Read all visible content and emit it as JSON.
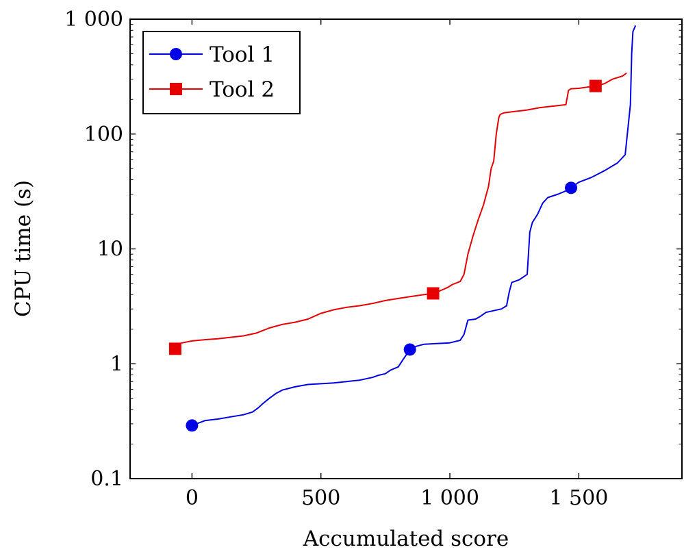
{
  "chart_data": {
    "type": "line",
    "title": "",
    "xlabel": "Accumulated score",
    "ylabel": "CPU time (s)",
    "xlim": [
      -240,
      1900
    ],
    "ylim": [
      0.1,
      1000
    ],
    "yscale": "log",
    "grid": false,
    "legend_position": "top-left",
    "x_ticks": [
      0,
      500,
      1000,
      1500
    ],
    "x_tick_labels": [
      "0",
      "500",
      "1 000",
      "1 500"
    ],
    "y_ticks": [
      0.1,
      1,
      10,
      100,
      1000
    ],
    "y_tick_labels": [
      "0.1",
      "1",
      "10",
      "100",
      "1 000"
    ],
    "series": [
      {
        "name": "Tool 1",
        "color": "#0000e6",
        "marker": "circle",
        "x": [
          0,
          50,
          100,
          150,
          200,
          235,
          255,
          275,
          300,
          325,
          350,
          400,
          450,
          500,
          550,
          600,
          650,
          700,
          720,
          750,
          770,
          800,
          820,
          845,
          870,
          900,
          950,
          1000,
          1040,
          1055,
          1070,
          1100,
          1120,
          1140,
          1170,
          1200,
          1220,
          1230,
          1240,
          1260,
          1270,
          1300,
          1310,
          1320,
          1340,
          1360,
          1380,
          1420,
          1450,
          1470,
          1500,
          1550,
          1600,
          1650,
          1680,
          1700,
          1705,
          1710,
          1720
        ],
        "y": [
          0.29,
          0.32,
          0.33,
          0.345,
          0.36,
          0.38,
          0.41,
          0.45,
          0.5,
          0.55,
          0.59,
          0.63,
          0.66,
          0.67,
          0.68,
          0.7,
          0.72,
          0.76,
          0.79,
          0.82,
          0.88,
          0.94,
          1.1,
          1.33,
          1.42,
          1.48,
          1.5,
          1.52,
          1.6,
          1.8,
          2.4,
          2.45,
          2.6,
          2.8,
          2.9,
          3.0,
          3.2,
          4.2,
          5.1,
          5.3,
          5.4,
          6.0,
          14.0,
          17.0,
          20.0,
          25.0,
          28.0,
          30.0,
          32.0,
          34.0,
          38.0,
          42.0,
          48.0,
          56.0,
          66.0,
          180.0,
          500.0,
          780.0,
          880.0
        ]
      },
      {
        "name": "Tool 2",
        "color": "#e60000",
        "marker": "square",
        "x": [
          -65,
          -50,
          0,
          50,
          100,
          150,
          200,
          250,
          300,
          350,
          400,
          450,
          500,
          550,
          600,
          650,
          700,
          750,
          800,
          850,
          900,
          935,
          960,
          990,
          1010,
          1040,
          1055,
          1070,
          1090,
          1110,
          1130,
          1150,
          1160,
          1170,
          1180,
          1190,
          1195,
          1200,
          1210,
          1250,
          1300,
          1350,
          1400,
          1450,
          1460,
          1470,
          1500,
          1565,
          1600,
          1630,
          1650,
          1670,
          1685
        ],
        "y": [
          1.35,
          1.5,
          1.58,
          1.62,
          1.65,
          1.7,
          1.75,
          1.85,
          2.05,
          2.2,
          2.3,
          2.45,
          2.75,
          2.95,
          3.1,
          3.2,
          3.35,
          3.55,
          3.7,
          3.85,
          4.0,
          4.1,
          4.3,
          4.6,
          4.9,
          5.2,
          6.0,
          9.0,
          13.0,
          18.0,
          24.0,
          35.0,
          50.0,
          58.0,
          100.0,
          140.0,
          148.0,
          150.0,
          153.0,
          157.0,
          162.0,
          170.0,
          175.0,
          180.0,
          240.0,
          248.0,
          250.0,
          262.0,
          275.0,
          300.0,
          310.0,
          320.0,
          340.0
        ]
      }
    ],
    "marker_points": [
      {
        "series": "Tool 1",
        "x": [
          0,
          845,
          1470
        ],
        "y": [
          0.29,
          1.33,
          34.0
        ]
      },
      {
        "series": "Tool 2",
        "x": [
          -65,
          935,
          1565
        ],
        "y": [
          1.35,
          4.1,
          262.0
        ]
      }
    ]
  }
}
